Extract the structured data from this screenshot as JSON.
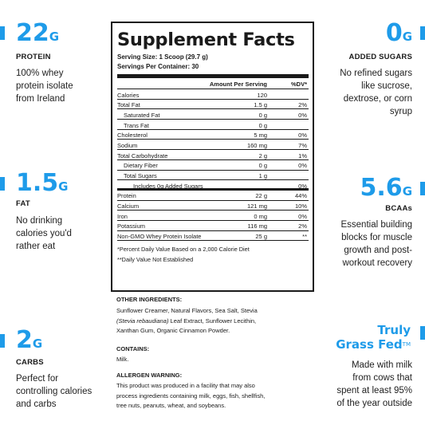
{
  "left_stats": [
    {
      "value": "22",
      "unit": "G",
      "label": "PROTEIN",
      "desc": [
        "100% whey",
        "protein isolate",
        "from Ireland"
      ]
    },
    {
      "value": "1.5",
      "unit": "G",
      "label": "FAT",
      "desc": [
        "No drinking",
        "calories you'd",
        "rather eat"
      ]
    },
    {
      "value": "2",
      "unit": "G",
      "label": "CARBS",
      "desc": [
        "Perfect for",
        "controlling calories",
        "and carbs"
      ]
    }
  ],
  "right_stats": [
    {
      "value": "0",
      "unit": "G",
      "label": "ADDED SUGARS",
      "desc": [
        "No refined sugars",
        "like sucrose,",
        "dextrose, or corn",
        "syrup"
      ]
    },
    {
      "value": "5.6",
      "unit": "G",
      "label": "BCAAs",
      "desc": [
        "Essential building",
        "blocks for muscle",
        "growth and post-",
        "workout recovery"
      ]
    }
  ],
  "grass_fed": {
    "title_line1": "Truly",
    "title_line2": "Grass Fed",
    "trademark": "TM",
    "desc": [
      "Made with milk",
      "from cows that",
      "spent at least 95%",
      "of the year outside"
    ]
  },
  "panel": {
    "title": "Supplement Facts",
    "serving_size": "Serving Size: 1 Scoop (29.7 g)",
    "servings_per_container": "Servings Per Container: 30",
    "col_amount": "Amount Per Serving",
    "col_dv": "%DV*",
    "rows": [
      {
        "name": "Calories",
        "amount": "120",
        "dv": ""
      },
      {
        "name": "Total Fat",
        "amount": "1.5 g",
        "dv": "2%"
      },
      {
        "name": "Saturated Fat",
        "amount": "0 g",
        "dv": "0%"
      },
      {
        "name": "Trans Fat",
        "amount": "0 g",
        "dv": ""
      },
      {
        "name": "Cholesterol",
        "amount": "5 mg",
        "dv": "0%"
      },
      {
        "name": "Sodium",
        "amount": "160 mg",
        "dv": "7%"
      },
      {
        "name": "Total Carbohydrate",
        "amount": "2 g",
        "dv": "1%"
      },
      {
        "name": "Dietary Fiber",
        "amount": "0 g",
        "dv": "0%"
      },
      {
        "name": "Total Sugars",
        "amount": "1 g",
        "dv": ""
      },
      {
        "name": "Includes 0g Added Sugars",
        "amount": "",
        "dv": "0%"
      },
      {
        "name": "Protein",
        "amount": "22 g",
        "dv": "44%"
      },
      {
        "name": "Calcium",
        "amount": "121 mg",
        "dv": "10%"
      },
      {
        "name": "Iron",
        "amount": "0 mg",
        "dv": "0%"
      },
      {
        "name": "Potassium",
        "amount": "116 mg",
        "dv": "2%"
      },
      {
        "name": "Non-GMO Whey Protein Isolate",
        "amount": "25 g",
        "dv": "**"
      }
    ],
    "footnote1": "*Percent Daily Value Based on a 2,000 Calorie Diet",
    "footnote2": "**Daily Value Not Established"
  },
  "ingredients": {
    "heading": "OTHER INGREDIENTS:",
    "line1": "Sunflower Creamer, Natural Flavors, Sea Salt, Stevia",
    "line2_italic": "(Stevia rebaudiana)",
    "line2_rest": " Leaf Extract, Sunflower Lecithin,",
    "line3": "Xanthan Gum, Organic Cinnamon Powder.",
    "contains_heading": "CONTAINS:",
    "contains": "Milk.",
    "allergen_heading": "ALLERGEN WARNING:",
    "allergen_lines": [
      "This product was produced in a facility that may also",
      "process ingredients containing milk, eggs, fish, shellfish,",
      "tree nuts, peanuts, wheat, and soybeans."
    ]
  },
  "colors": {
    "accent": "#1e9be9",
    "text": "#1a1a1a"
  }
}
